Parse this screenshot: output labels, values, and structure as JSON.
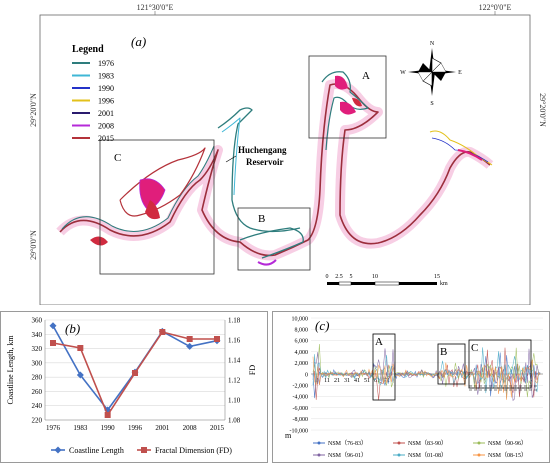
{
  "panel_a": {
    "label": "(a)",
    "coords": {
      "top_left": "121°30'0\"E",
      "top_right": "122°0'0\"E",
      "left_top": "29°20'0\"N",
      "left_bottom": "29°0'0\"N",
      "right_top": "29°20'0\"N"
    },
    "legend": {
      "title": "Legend",
      "items": [
        {
          "year": "1976",
          "color": "#2e7d7d"
        },
        {
          "year": "1983",
          "color": "#3fb7d6"
        },
        {
          "year": "1990",
          "color": "#2432c8"
        },
        {
          "year": "1996",
          "color": "#e3c11b"
        },
        {
          "year": "2001",
          "color": "#2a1b6e"
        },
        {
          "year": "2008",
          "color": "#b52ad8"
        },
        {
          "year": "2015",
          "color": "#b4323a"
        }
      ]
    },
    "regions": [
      "A",
      "B",
      "C"
    ],
    "reservoir": [
      "Huchengang",
      "Reservoir"
    ],
    "compass": {
      "n": "N",
      "s": "S",
      "e": "E",
      "w": "W"
    },
    "scale": {
      "ticks": [
        "0",
        "2.5",
        "5",
        "10",
        "15"
      ],
      "unit": "km"
    }
  },
  "chart_data": [
    {
      "type": "line",
      "panel_label": "(b)",
      "categories": [
        "1976",
        "1983",
        "1990",
        "1996",
        "2001",
        "2008",
        "2015"
      ],
      "series": [
        {
          "name": "Coastline Length",
          "axis": "left",
          "color": "#4472c4",
          "marker": "diamond",
          "values": [
            352,
            283,
            234,
            287,
            344,
            323,
            331
          ]
        },
        {
          "name": "Fractal Dimension (FD)",
          "axis": "right",
          "color": "#c0504d",
          "marker": "square",
          "values": [
            1.157,
            1.152,
            1.085,
            1.127,
            1.168,
            1.161,
            1.161
          ]
        }
      ],
      "ylabel": "Coastline Length, km",
      "y2label": "FD",
      "ylim": [
        220,
        360
      ],
      "yticks": [
        "220",
        "240",
        "260",
        "280",
        "300",
        "320",
        "340",
        "360"
      ],
      "y2lim": [
        1.08,
        1.18
      ],
      "y2ticks": [
        "1.08",
        "1.10",
        "1.12",
        "1.14",
        "1.16",
        "1.18"
      ]
    },
    {
      "type": "line",
      "panel_label": "(c)",
      "xlabel": "m",
      "ylim": [
        -10000,
        10000
      ],
      "yticks": [
        "10,000",
        "8,000",
        "6,000",
        "4,000",
        "2,000",
        "0",
        "-2,000",
        "-4,000",
        "-6,000",
        "-8,000",
        "-10,000"
      ],
      "xticks": [
        "1",
        "11",
        "21",
        "31",
        "41",
        "51",
        "61",
        "71"
      ],
      "regions": [
        "A",
        "B",
        "C"
      ],
      "legend": [
        {
          "name": "NSM（76-83）",
          "color": "#4472c4"
        },
        {
          "name": "NSM（83-90）",
          "color": "#c0504d"
        },
        {
          "name": "NSM（90-96）",
          "color": "#9bbb59"
        },
        {
          "name": "NSM（96-01）",
          "color": "#8064a2"
        },
        {
          "name": "NSM（01-08）",
          "color": "#4bacc6"
        },
        {
          "name": "NSM（08-15）",
          "color": "#f79646"
        }
      ]
    }
  ]
}
